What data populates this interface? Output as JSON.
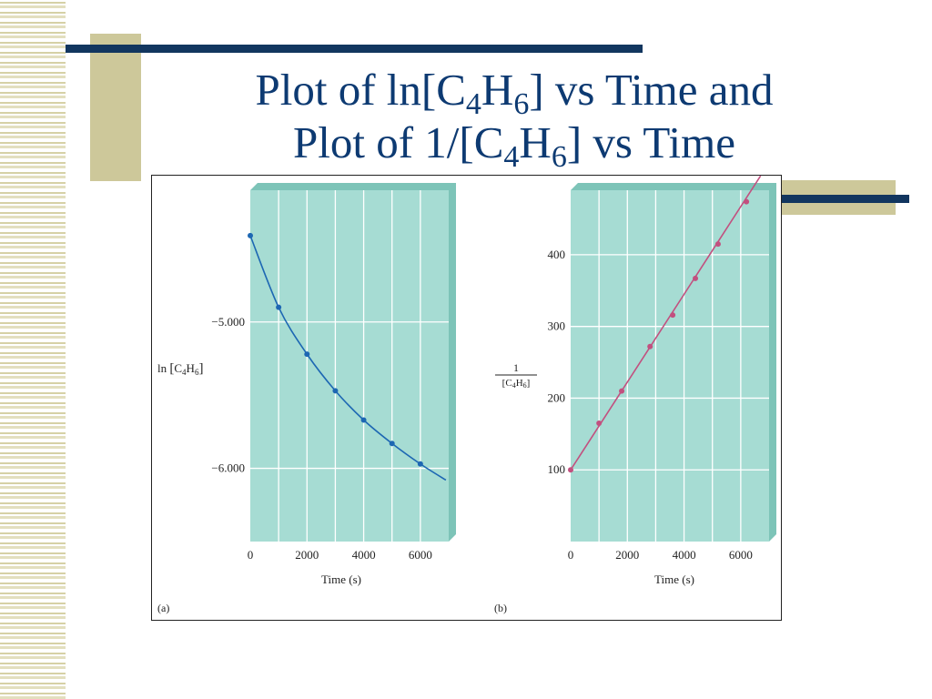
{
  "slide": {
    "title_line1_pre": "Plot of ln[C",
    "title_line1_sub1": "4",
    "title_line1_mid": "H",
    "title_line1_sub2": "6",
    "title_line1_post": "] vs Time and",
    "title_line2_pre": "Plot of 1/[C",
    "title_line2_sub1": "4",
    "title_line2_mid": "H",
    "title_line2_sub2": "6",
    "title_line2_post": "] vs Time"
  },
  "colors": {
    "title": "#0d3a72",
    "panel_face": "#a6dcd3",
    "panel_edge": "#7dc4b8",
    "series_a": "#1d67b3",
    "series_b": "#c2507f"
  },
  "chart_data": [
    {
      "type": "line",
      "panel_label": "(a)",
      "xlabel": "Time (s)",
      "ylabel": "ln [C4H6]",
      "ylabel_parts": {
        "pre": "ln ",
        "c": "C",
        "sub1": "4",
        "h": "H",
        "sub2": "6"
      },
      "x_ticks": [
        "0",
        "2000",
        "4000",
        "6000"
      ],
      "x_tick_values": [
        0,
        2000,
        4000,
        6000
      ],
      "y_ticks": [
        "−5.000",
        "−6.000"
      ],
      "y_tick_values": [
        -5.0,
        -6.0
      ],
      "xlim": [
        0,
        7000
      ],
      "ylim": [
        -6.5,
        -4.1
      ],
      "grid": true,
      "points": {
        "x": [
          0,
          1000,
          2000,
          3000,
          4000,
          5000,
          6000
        ],
        "y": [
          -4.41,
          -4.9,
          -5.22,
          -5.47,
          -5.67,
          -5.83,
          -5.97
        ]
      },
      "curve_end": [
        6900,
        -6.08
      ]
    },
    {
      "type": "line",
      "panel_label": "(b)",
      "xlabel": "Time (s)",
      "ylabel": "1/[C4H6]",
      "ylabel_parts": {
        "num": "1",
        "c": "C",
        "sub1": "4",
        "h": "H",
        "sub2": "6"
      },
      "x_ticks": [
        "0",
        "2000",
        "4000",
        "6000"
      ],
      "x_tick_values": [
        0,
        2000,
        4000,
        6000
      ],
      "y_ticks": [
        "100",
        "200",
        "300",
        "400"
      ],
      "y_tick_values": [
        100,
        200,
        300,
        400
      ],
      "xlim": [
        0,
        7000
      ],
      "ylim": [
        0,
        490
      ],
      "grid": true,
      "points": {
        "x": [
          0,
          1000,
          1800,
          2800,
          3600,
          4400,
          5200,
          6200
        ],
        "y": [
          100,
          165,
          210,
          272,
          316,
          367,
          415,
          474
        ]
      },
      "line_end": [
        6700,
        510
      ]
    }
  ]
}
